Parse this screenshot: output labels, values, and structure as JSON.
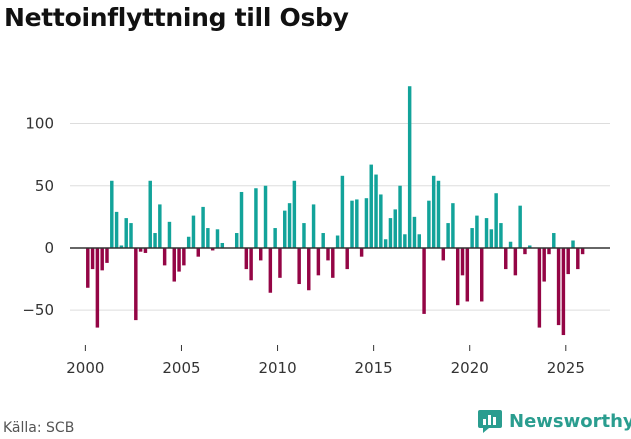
{
  "title": "Nettoinflyttning till Osby",
  "source": "Källa: SCB",
  "brand": {
    "name": "Newsworthy",
    "icon": "newsworthy-logo-icon",
    "color": "#2a9d8f"
  },
  "colors": {
    "positive": "#12a39a",
    "negative": "#940545",
    "grid": "#dddddd",
    "zero_line": "#333333",
    "text": "#333333"
  },
  "chart_data": {
    "type": "bar",
    "title": "Nettoinflyttning till Osby",
    "xlabel": "",
    "ylabel": "",
    "ylim": [
      -78,
      135
    ],
    "yticks": [
      -50,
      0,
      50,
      100
    ],
    "ytick_labels": [
      "−50",
      "0",
      "50",
      "100"
    ],
    "xticks": [
      2000,
      2005,
      2010,
      2015,
      2020,
      2025
    ],
    "xtick_labels": [
      "2000",
      "2005",
      "2010",
      "2015",
      "2020",
      "2025"
    ],
    "x_range": [
      1999.2,
      2027.3
    ],
    "grid": true,
    "x_start": 2000.0,
    "period": 0.25,
    "values": [
      -32,
      -17,
      -64,
      -18,
      -12,
      54,
      29,
      2,
      24,
      20,
      -58,
      -3,
      -4,
      54,
      12,
      35,
      -14,
      21,
      -27,
      -19,
      -14,
      9,
      26,
      -7,
      33,
      16,
      -2,
      15,
      4,
      0,
      0,
      12,
      45,
      -17,
      -26,
      48,
      -10,
      50,
      -36,
      16,
      -24,
      30,
      36,
      54,
      -29,
      20,
      -34,
      35,
      -22,
      12,
      -10,
      -24,
      10,
      58,
      -17,
      38,
      39,
      -7,
      40,
      67,
      59,
      43,
      7,
      24,
      31,
      50,
      11,
      130,
      25,
      11,
      -53,
      38,
      58,
      54,
      -10,
      20,
      36,
      -46,
      -22,
      -43,
      16,
      26,
      -43,
      24,
      15,
      44,
      20,
      -17,
      5,
      -22,
      34,
      -5,
      2,
      0,
      -64,
      -27,
      -5,
      12,
      -62,
      -70,
      -21,
      6,
      -17,
      -5
    ]
  }
}
